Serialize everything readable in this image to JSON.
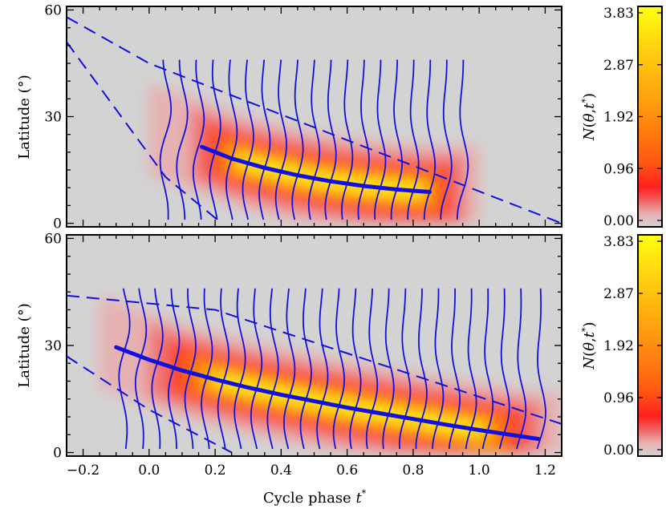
{
  "chart_data": [
    {
      "type": "heatmap",
      "panel": "top",
      "title": "",
      "xlabel": "",
      "ylabel": "Latitude (°)",
      "xlim": [
        -0.25,
        1.25
      ],
      "ylim": [
        -1,
        61
      ],
      "x_ticks": [
        -0.2,
        0.0,
        0.2,
        0.4,
        0.6,
        0.8,
        1.0,
        1.2
      ],
      "y_ticks": [
        0,
        30,
        60
      ],
      "y_tick_labels": [
        "0",
        "30",
        "60"
      ],
      "background_color": "#d3d3d3",
      "centroid_line": {
        "x": [
          0.16,
          0.25,
          0.35,
          0.45,
          0.55,
          0.65,
          0.75,
          0.85
        ],
        "y": [
          21.5,
          18.2,
          15.6,
          13.5,
          11.8,
          10.5,
          9.5,
          8.8
        ]
      },
      "envelope_upper": {
        "x": [
          -0.25,
          0.0,
          1.25
        ],
        "y": [
          58,
          45,
          0
        ]
      },
      "envelope_lower": {
        "x": [
          -0.25,
          0.05,
          0.22
        ],
        "y": [
          51,
          13,
          0
        ]
      },
      "profile_centers": [
        0.05,
        0.1,
        0.15,
        0.2,
        0.25,
        0.3,
        0.35,
        0.4,
        0.45,
        0.5,
        0.55,
        0.6,
        0.65,
        0.7,
        0.75,
        0.8,
        0.85,
        0.9,
        0.95
      ],
      "profile_lat_range": [
        1,
        46
      ],
      "density_region": {
        "x_start": 0.0,
        "x_end": 1.0
      }
    },
    {
      "type": "heatmap",
      "panel": "bottom",
      "title": "",
      "xlabel": "Cycle phase t*",
      "ylabel": "Latitude (°)",
      "xlim": [
        -0.25,
        1.25
      ],
      "ylim": [
        -1,
        61
      ],
      "x_ticks": [
        -0.2,
        0.0,
        0.2,
        0.4,
        0.6,
        0.8,
        1.0,
        1.2
      ],
      "x_tick_labels": [
        "−0.2",
        "0.0",
        "0.2",
        "0.4",
        "0.6",
        "0.8",
        "1.0",
        "1.2"
      ],
      "y_ticks": [
        0,
        30,
        60
      ],
      "y_tick_labels": [
        "0",
        "30",
        "60"
      ],
      "background_color": "#d3d3d3",
      "centroid_line": {
        "x": [
          -0.1,
          0.0,
          0.1,
          0.2,
          0.3,
          0.4,
          0.5,
          0.6,
          0.7,
          0.8,
          0.9,
          1.0,
          1.1,
          1.18
        ],
        "y": [
          29.5,
          26,
          23,
          20.5,
          18.2,
          16.2,
          14.4,
          12.6,
          11.0,
          9.4,
          7.8,
          6.3,
          4.9,
          3.8
        ]
      },
      "envelope_upper": {
        "x": [
          -0.25,
          0.2,
          1.25
        ],
        "y": [
          44,
          40,
          8
        ]
      },
      "envelope_lower": {
        "x": [
          -0.25,
          0.0,
          0.25
        ],
        "y": [
          27,
          12,
          0
        ]
      },
      "profile_centers": [
        -0.075,
        -0.025,
        0.025,
        0.075,
        0.125,
        0.175,
        0.225,
        0.275,
        0.325,
        0.375,
        0.425,
        0.475,
        0.525,
        0.575,
        0.625,
        0.675,
        0.725,
        0.775,
        0.825,
        0.875,
        0.925,
        0.975,
        1.025,
        1.075,
        1.125,
        1.185
      ],
      "profile_lat_range": [
        1,
        46
      ],
      "density_region": {
        "x_start": -0.15,
        "x_end": 1.25
      }
    }
  ],
  "colorbars": [
    {
      "label": "N(θ,t*)",
      "ticks": [
        "3.83",
        "2.87",
        "1.92",
        "0.96",
        "0.00"
      ]
    },
    {
      "label": "N(θ,t*)",
      "ticks": [
        "3.83",
        "2.87",
        "1.92",
        "0.96",
        "0.00"
      ]
    }
  ],
  "colors": {
    "line": "#1010e0",
    "background": "#d3d3d3",
    "colormap": [
      "#d3d3d3",
      "#e8a0a0",
      "#f06060",
      "#ff2020",
      "#ff6010",
      "#ff9a10",
      "#ffd010",
      "#ffff10"
    ]
  }
}
